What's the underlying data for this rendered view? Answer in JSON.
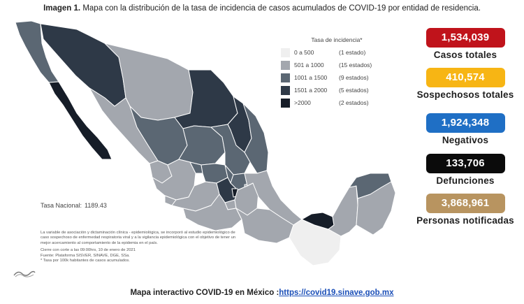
{
  "title": {
    "prefix": "Imagen 1.",
    "text": "Mapa con la distribución de la tasa de incidencia de casos acumulados de COVID-19 por entidad de residencia."
  },
  "legend": {
    "title": "Tasa de incidencia*",
    "items": [
      {
        "range": "0 a 500",
        "count": "(1 estado)",
        "color": "#efefef"
      },
      {
        "range": "501 a 1000",
        "count": "(15 estados)",
        "color": "#a3a7ae"
      },
      {
        "range": "1001 a 1500",
        "count": "(9 estados)",
        "color": "#5b6773"
      },
      {
        "range": "1501 a 2000",
        "count": "(5 estados)",
        "color": "#2e3947"
      },
      {
        "range": ">2000",
        "count": "(2 estados)",
        "color": "#161d28"
      }
    ]
  },
  "tasa_nacional": {
    "label": "Tasa Nacional:",
    "value": "1189.43"
  },
  "notes": [
    "La variable de asociación y dictaminación clínica - epidemiológica, se incorporó al estudio epidemiológico de caso sospechoso de enfermedad respiratoria viral y a la vigilancia epidemiológica con el objetivo de tener un mejor acercamiento al comportamiento de la epidemia en el país.",
    "Cierre con corte a las 09:00hrs, 10 de enero de 2021",
    "Fuente: Plataforma SISVER, SINAVE, DGE, SSa.",
    "* Tasa por 100k habitantes de casos acumulados."
  ],
  "stats": [
    {
      "value": "1,534,039",
      "label": "Casos totales",
      "color": "#c0131b"
    },
    {
      "value": "410,574",
      "label": "Sospechosos totales",
      "color": "#f7b514"
    },
    {
      "value": "1,924,348",
      "label": "Negativos",
      "color": "#1f6fc5"
    },
    {
      "value": "133,706",
      "label": "Defunciones",
      "color": "#0b0b0b"
    },
    {
      "value": "3,868,961",
      "label": "Personas notificadas",
      "color": "#b89460"
    }
  ],
  "footer": {
    "text": "Mapa interactivo COVID-19 en México :",
    "link": "https://covid19.sinave.gob.mx"
  },
  "colors": {
    "lvl1": "#efefef",
    "lvl2": "#a3a7ae",
    "lvl3": "#5b6773",
    "lvl4": "#2e3947",
    "lvl5": "#161d28"
  }
}
